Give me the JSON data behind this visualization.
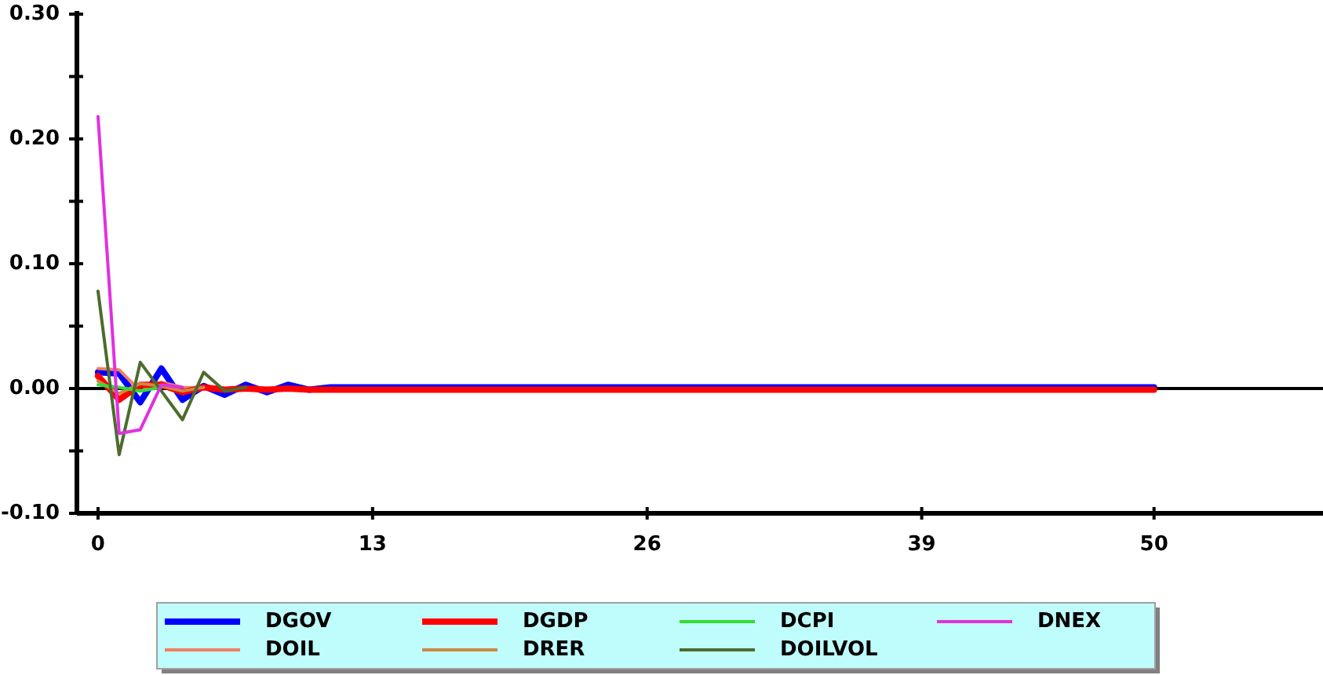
{
  "chart_data": {
    "type": "line",
    "x": [
      0,
      1,
      2,
      3,
      4,
      5,
      6,
      7,
      8,
      9,
      10,
      11,
      12,
      50
    ],
    "series": [
      {
        "name": "DGOV",
        "color": "#0000ff",
        "values": [
          0.013,
          0.012,
          -0.011,
          0.016,
          -0.009,
          0.002,
          -0.005,
          0.003,
          -0.003,
          0.003,
          -0.001,
          0.001,
          0.001,
          0.001
        ]
      },
      {
        "name": "DOIL",
        "color": "#f08060",
        "x": [
          0,
          1,
          2,
          3,
          4,
          5
        ],
        "values": [
          0.016,
          0.015,
          -0.002,
          0.005,
          0.001,
          0.0
        ]
      },
      {
        "name": "DGDP",
        "color": "#ff0000",
        "values": [
          0.01,
          -0.009,
          0.003,
          0.003,
          -0.003,
          0.001,
          -0.001,
          0.0,
          -0.001,
          0.0,
          -0.001,
          -0.001,
          -0.001,
          -0.001
        ]
      },
      {
        "name": "DRER",
        "color": "#cc8844",
        "x": [
          0,
          1,
          2,
          3,
          4,
          5
        ],
        "values": [
          0.006,
          -0.004,
          0.004,
          0.002,
          -0.002,
          0.001
        ]
      },
      {
        "name": "DCPI",
        "color": "#33dd33",
        "x": [
          0,
          1,
          2,
          3
        ],
        "values": [
          0.003,
          0.001,
          -0.002,
          0.001
        ]
      },
      {
        "name": "DOILVOL",
        "color": "#4d6b2e",
        "x": [
          0,
          1,
          2,
          3,
          4,
          5,
          6,
          7
        ],
        "values": [
          0.078,
          -0.053,
          0.021,
          -0.002,
          -0.025,
          0.013,
          -0.002,
          0.001
        ]
      },
      {
        "name": "DNEX",
        "color": "#e030e0",
        "x": [
          0,
          1,
          2,
          3,
          4
        ],
        "values": [
          0.218,
          -0.036,
          -0.033,
          0.003,
          0.001
        ]
      }
    ],
    "xlim": [
      -1,
      58
    ],
    "xticks": [
      0,
      13,
      26,
      39,
      50
    ],
    "ylim": [
      -0.1,
      0.3
    ],
    "yticks": [
      {
        "value": 0.3,
        "label": "0.30"
      },
      {
        "value": 0.25,
        "label": null
      },
      {
        "value": 0.2,
        "label": "0.20"
      },
      {
        "value": 0.15,
        "label": null
      },
      {
        "value": 0.1,
        "label": "0.10"
      },
      {
        "value": 0.05,
        "label": null
      },
      {
        "value": 0,
        "label": "0.00"
      },
      {
        "value": -0.05,
        "label": null
      },
      {
        "value": -0.1,
        "label": "-0.10"
      }
    ],
    "ref_lines": [
      {
        "axis": "y",
        "value": 0,
        "color": "#000000"
      }
    ],
    "legend": "bottom"
  }
}
